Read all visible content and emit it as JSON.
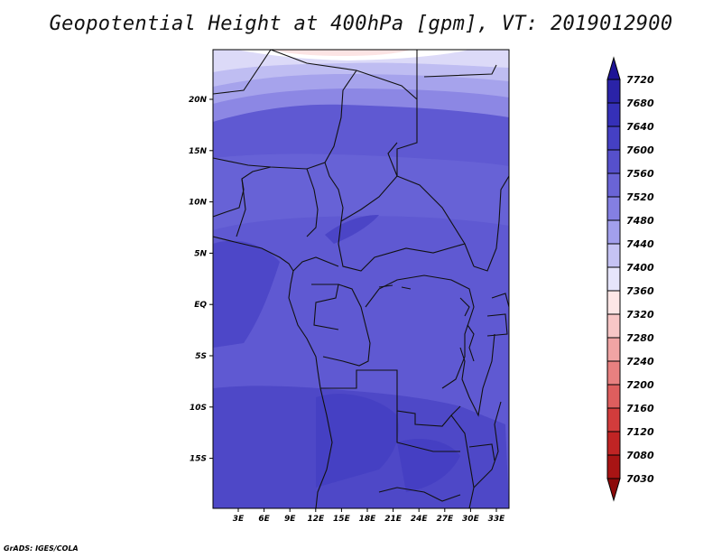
{
  "title": "Geopotential Height at 400hPa [gpm], VT: 2019012900",
  "credit": "GrADS: IGES/COLA",
  "lat_labels": [
    "20N",
    "15N",
    "10N",
    "5N",
    "EQ",
    "5S",
    "10S",
    "15S"
  ],
  "lon_labels": [
    "3E",
    "6E",
    "9E",
    "12E",
    "15E",
    "18E",
    "21E",
    "24E",
    "27E",
    "30E",
    "33E"
  ],
  "colorbar": {
    "levels": [
      "7720",
      "7680",
      "7640",
      "7600",
      "7560",
      "7520",
      "7480",
      "7440",
      "7400",
      "7360",
      "7320",
      "7280",
      "7240",
      "7200",
      "7160",
      "7120",
      "7080",
      "7030"
    ],
    "colors": [
      "#1e1496",
      "#2a23a8",
      "#3530b8",
      "#4540c4",
      "#5650cc",
      "#6a64d6",
      "#847fe2",
      "#a29fec",
      "#c5c3f4",
      "#e6e5fb",
      "#fde6e6",
      "#f8c6c6",
      "#f0a4a4",
      "#e88080",
      "#de5e5e",
      "#d23c3c",
      "#c02424",
      "#a81414",
      "#8c0a0a"
    ]
  },
  "field": {
    "bands": [
      {
        "level": "7400",
        "color": "#fde6e6"
      },
      {
        "level": "7360",
        "color": "#ffffff"
      },
      {
        "level": "7400",
        "color": "#e6e5fb"
      },
      {
        "level": "7440",
        "color": "#c5c3f4"
      },
      {
        "level": "7480",
        "color": "#a29fec"
      },
      {
        "level": "7520",
        "color": "#847fe2"
      },
      {
        "level": "7560",
        "color": "#6a64d6"
      },
      {
        "level": "7600",
        "color": "#5650cc"
      }
    ]
  }
}
